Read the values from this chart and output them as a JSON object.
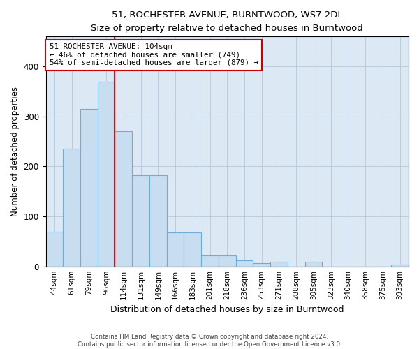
{
  "title": "51, ROCHESTER AVENUE, BURNTWOOD, WS7 2DL",
  "subtitle": "Size of property relative to detached houses in Burntwood",
  "xlabel": "Distribution of detached houses by size in Burntwood",
  "ylabel": "Number of detached properties",
  "categories": [
    "44sqm",
    "61sqm",
    "79sqm",
    "96sqm",
    "114sqm",
    "131sqm",
    "149sqm",
    "166sqm",
    "183sqm",
    "201sqm",
    "218sqm",
    "236sqm",
    "253sqm",
    "271sqm",
    "288sqm",
    "305sqm",
    "323sqm",
    "340sqm",
    "358sqm",
    "375sqm",
    "393sqm"
  ],
  "values": [
    70,
    235,
    315,
    370,
    270,
    183,
    183,
    68,
    68,
    22,
    22,
    12,
    6,
    10,
    0,
    10,
    0,
    0,
    0,
    0,
    4
  ],
  "bar_color": "#c9ddf0",
  "bar_edge_color": "#6baed6",
  "red_line_index": 4,
  "annotation_text": "51 ROCHESTER AVENUE: 104sqm\n← 46% of detached houses are smaller (749)\n54% of semi-detached houses are larger (879) →",
  "annotation_box_color": "#ffffff",
  "annotation_box_edge": "#cc0000",
  "footer_line1": "Contains HM Land Registry data © Crown copyright and database right 2024.",
  "footer_line2": "Contains public sector information licensed under the Open Government Licence v3.0.",
  "ylim": [
    0,
    460
  ],
  "background_color": "#ffffff",
  "plot_bg_color": "#dce9f5",
  "grid_color": "#b8cce0"
}
